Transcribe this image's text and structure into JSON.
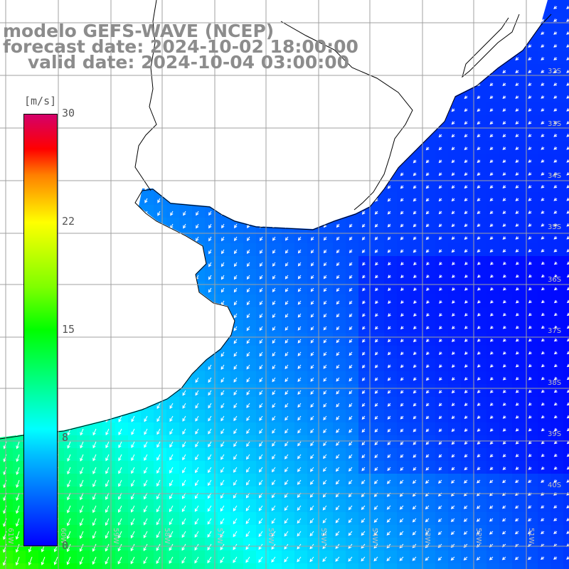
{
  "title": {
    "line1": "modelo GEFS-WAVE (NCEP)",
    "line2": "forecast date: 2024-10-02 18:00:00",
    "line3": "    valid date: 2024-10-04 03:00:00"
  },
  "colorbar": {
    "unit": "[m/s]",
    "ticks": [
      "30",
      "22",
      "15",
      "8",
      "0"
    ],
    "colors": [
      "#0000ff",
      "#00bfff",
      "#00ffff",
      "#00ff00",
      "#7fff00",
      "#ffff00",
      "#ff7f00",
      "#ff0000",
      "#d4006a"
    ]
  },
  "map": {
    "lat_labels": [
      "32S",
      "33S",
      "34S",
      "35S",
      "36S",
      "37S",
      "38S",
      "39S",
      "40S"
    ],
    "lon_labels": [
      "61W",
      "60W",
      "59W",
      "58W",
      "57W",
      "56W",
      "55W",
      "54W",
      "53W",
      "52W",
      "51W"
    ],
    "land_color": "#ffffff",
    "coast_color": "#000000",
    "grid_color": "#a0a0a0",
    "arrow_color": "#ffffff"
  }
}
